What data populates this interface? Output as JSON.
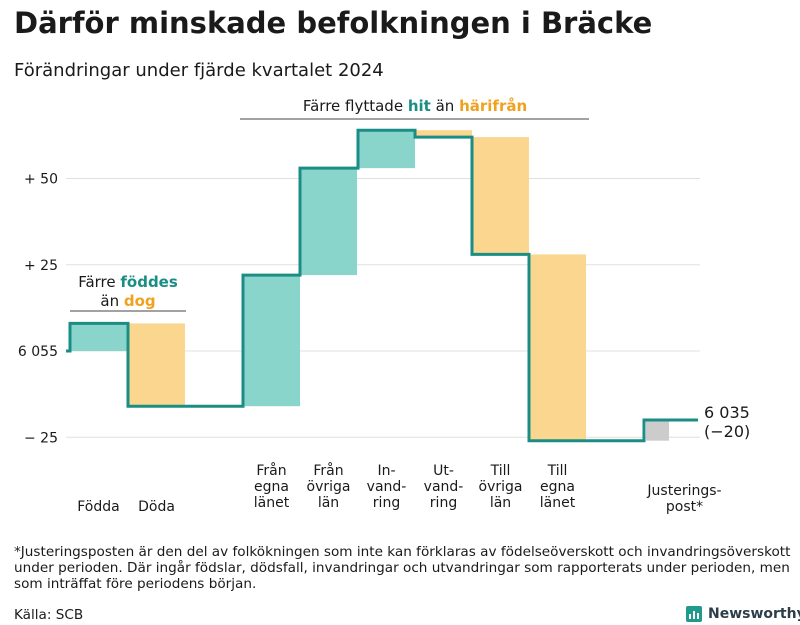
{
  "title": "Därför minskade befolkningen i Bräcke",
  "subtitle": "Förändringar under fjärde kvartalet 2024",
  "footnote": "*Justeringsposten är den del av folkökningen som inte kan förklaras av födelseöverskott och invandringsöverskott under perioden. Där ingår födslar, dödsfall, invandringar och utvandringar som rapporterats under perioden, men som inträffat före periodens början.",
  "source": "Källa: SCB",
  "brand": "Newsworthy",
  "colors": {
    "increase": "#8ad5cb",
    "decrease": "#fbd68e",
    "adjustment": "#cccccc",
    "line": "#1a8d84",
    "teal_text": "#1a8d84",
    "orange_text": "#f0a21f"
  },
  "chart_data": {
    "type": "waterfall",
    "start_value": 6055,
    "end_value": 6035,
    "end_label": "6 035",
    "end_change_label": "(−20)",
    "y_ticks": [
      {
        "value": 50,
        "label": "+ 50"
      },
      {
        "value": 25,
        "label": "+ 25"
      },
      {
        "value": 0,
        "label": "6 055"
      },
      {
        "value": -25,
        "label": "− 25"
      }
    ],
    "ylim": [
      -30,
      68
    ],
    "steps": [
      {
        "label": [
          "Födda"
        ],
        "kind": "increase",
        "start": 0,
        "end": 8
      },
      {
        "label": [
          "Döda"
        ],
        "kind": "decrease",
        "start": 8,
        "end": -16
      },
      {
        "label": [
          "Från",
          "egna",
          "länet"
        ],
        "kind": "increase",
        "start": -16,
        "end": 22
      },
      {
        "label": [
          "Från",
          "övriga",
          "län"
        ],
        "kind": "increase",
        "start": 22,
        "end": 53
      },
      {
        "label": [
          "In-",
          "vand-",
          "ring"
        ],
        "kind": "increase",
        "start": 53,
        "end": 64
      },
      {
        "label": [
          "Ut-",
          "vand-",
          "ring"
        ],
        "kind": "decrease",
        "start": 64,
        "end": 62
      },
      {
        "label": [
          "Till",
          "övriga",
          "län"
        ],
        "kind": "decrease",
        "start": 62,
        "end": 28
      },
      {
        "label": [
          "Till",
          "egna",
          "länet"
        ],
        "kind": "decrease",
        "start": 28,
        "end": -26
      },
      {
        "label": [
          "Justerings-",
          "post*"
        ],
        "kind": "adjustment",
        "start": -26,
        "end": -20
      }
    ],
    "annotations": [
      {
        "parts": [
          {
            "text": "Färre ",
            "color": "plain"
          },
          {
            "text": "föddes",
            "color": "teal"
          },
          {
            "text": "än ",
            "color": "plain",
            "newline": true
          },
          {
            "text": "dog",
            "color": "orange"
          }
        ]
      },
      {
        "parts": [
          {
            "text": "Färre flyttade ",
            "color": "plain"
          },
          {
            "text": "hit",
            "color": "teal"
          },
          {
            "text": " än ",
            "color": "plain"
          },
          {
            "text": "härifrån",
            "color": "orange"
          }
        ]
      }
    ]
  }
}
